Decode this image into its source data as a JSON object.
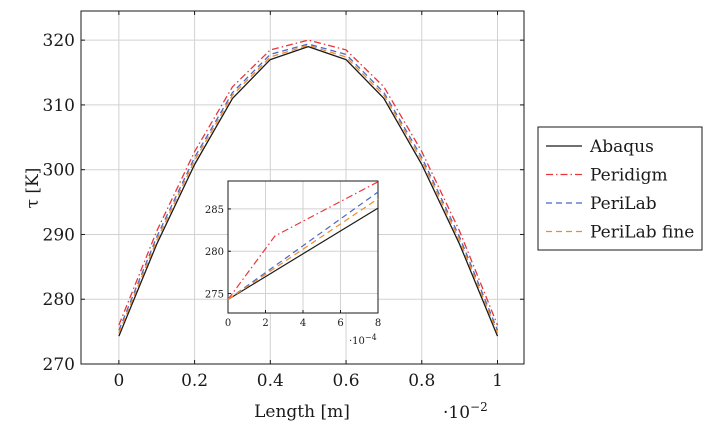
{
  "chart_data": {
    "type": "line",
    "xlabel": "Length [m]",
    "ylabel": "τ [K]",
    "x_multiplier": "·10",
    "x_multiplier_exp": "−2",
    "xlim": [
      -0.1,
      1.07
    ],
    "ylim": [
      270,
      324.5
    ],
    "x_ticks": [
      "0",
      "0.2",
      "0.4",
      "0.6",
      "0.8",
      "1"
    ],
    "y_ticks": [
      "270",
      "280",
      "290",
      "300",
      "310",
      "320"
    ],
    "grid": true,
    "legend_position": "right",
    "series": [
      {
        "name": "Abaqus",
        "color": "#1a1a1a",
        "dash": "solid",
        "x": [
          0,
          0.1,
          0.2,
          0.3,
          0.4,
          0.5,
          0.6,
          0.7,
          0.8,
          0.9,
          1.0
        ],
        "y": [
          274.3,
          288.5,
          300.8,
          311.0,
          317.0,
          319.0,
          317.0,
          311.0,
          300.8,
          288.5,
          274.3
        ]
      },
      {
        "name": "Peridigm",
        "color": "#e8353a",
        "dash": "dashdot",
        "x": [
          0,
          0.1,
          0.2,
          0.3,
          0.4,
          0.5,
          0.6,
          0.7,
          0.8,
          0.9,
          1.0
        ],
        "y": [
          276.0,
          290.5,
          302.8,
          312.8,
          318.5,
          320.0,
          318.5,
          312.8,
          302.8,
          290.5,
          276.0
        ]
      },
      {
        "name": "PeriLab",
        "color": "#4a68c8",
        "dash": "dashed",
        "x": [
          0,
          0.1,
          0.2,
          0.3,
          0.4,
          0.5,
          0.6,
          0.7,
          0.8,
          0.9,
          1.0
        ],
        "y": [
          275.2,
          289.6,
          301.9,
          311.9,
          317.8,
          319.4,
          317.8,
          311.9,
          301.9,
          289.6,
          275.2
        ]
      },
      {
        "name": "PeriLab fine",
        "color": "#f08a2a",
        "dash": "dashed",
        "x": [
          0,
          0.1,
          0.2,
          0.3,
          0.4,
          0.5,
          0.6,
          0.7,
          0.8,
          0.9,
          1.0
        ],
        "y": [
          274.8,
          289.1,
          301.4,
          311.5,
          317.4,
          319.2,
          317.4,
          311.5,
          301.4,
          289.1,
          274.8
        ]
      }
    ],
    "inset": {
      "x_multiplier": "·10",
      "x_multiplier_exp": "−4",
      "xlim": [
        0,
        8
      ],
      "ylim": [
        272.7,
        288.3
      ],
      "x_ticks": [
        "0",
        "2",
        "4",
        "6",
        "8"
      ],
      "y_ticks": [
        "275",
        "280",
        "285"
      ],
      "series": [
        {
          "name": "Abaqus",
          "x": [
            0,
            8
          ],
          "y": [
            274.3,
            285.1
          ]
        },
        {
          "name": "Peridigm",
          "x": [
            0,
            2.5,
            8
          ],
          "y": [
            274.3,
            281.8,
            288.2
          ]
        },
        {
          "name": "PeriLab",
          "x": [
            0,
            8
          ],
          "y": [
            274.3,
            287.0
          ]
        },
        {
          "name": "PeriLab fine",
          "x": [
            0,
            8
          ],
          "y": [
            274.3,
            286.2
          ]
        }
      ]
    }
  }
}
